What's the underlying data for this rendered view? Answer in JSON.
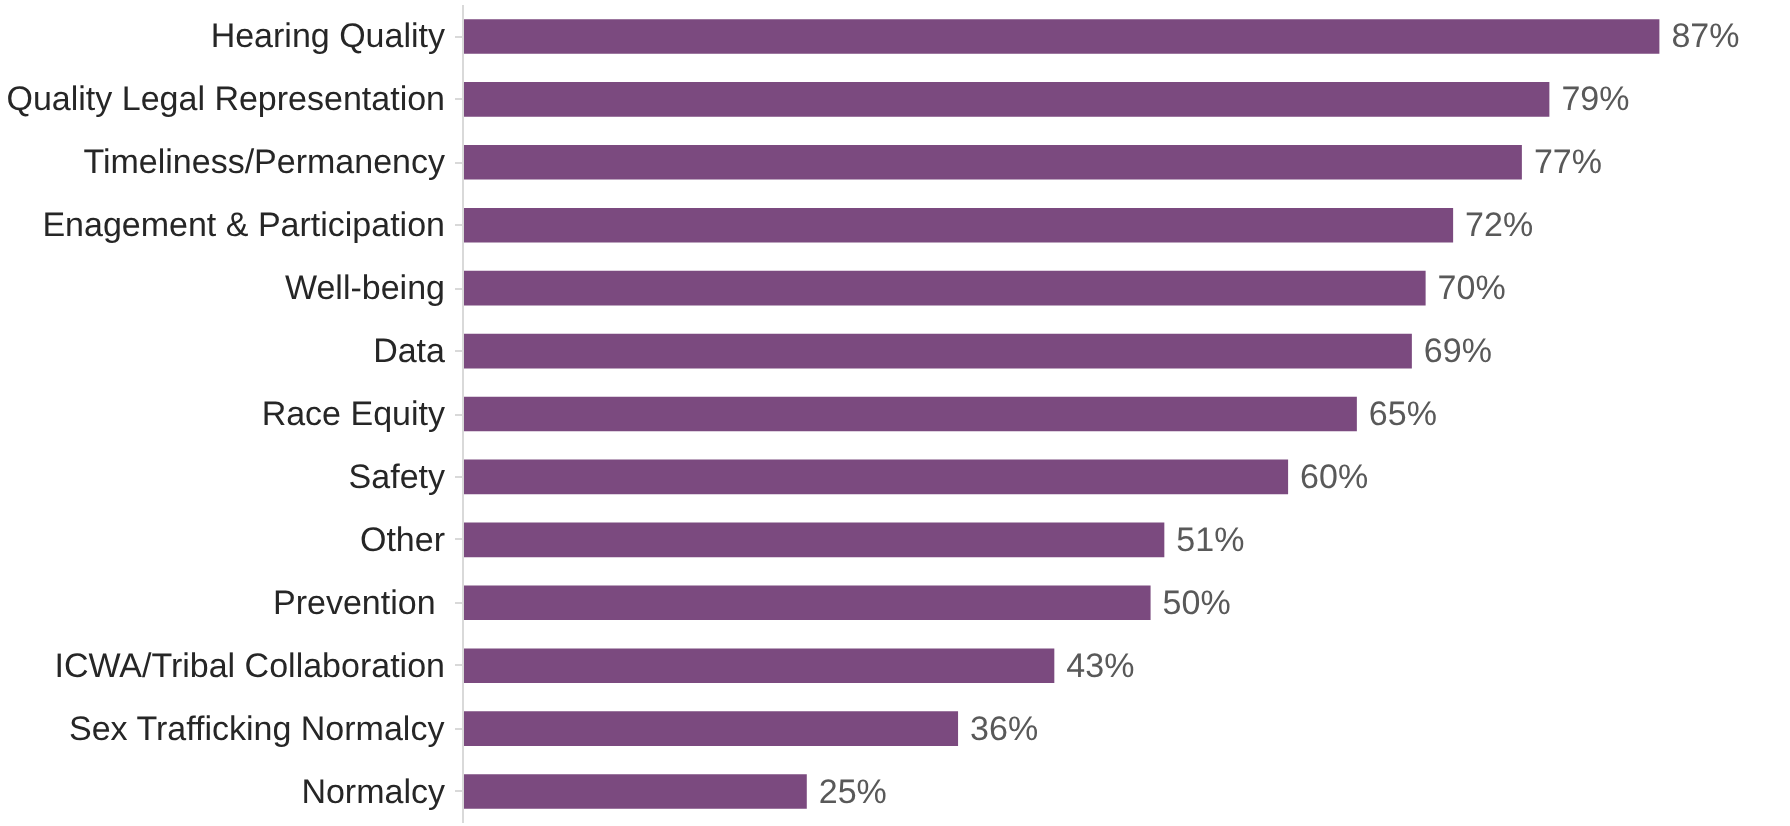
{
  "chart_data": {
    "type": "bar",
    "orientation": "horizontal",
    "categories": [
      "Hearing Quality",
      "Quality Legal Representation",
      "Timeliness/Permanency",
      "Enagement & Participation",
      "Well-being",
      "Data",
      "Race Equity",
      "Safety",
      "Other",
      "Prevention ",
      "ICWA/Tribal Collaboration",
      "Sex Trafficking Normalcy",
      "Normalcy"
    ],
    "values": [
      87,
      79,
      77,
      72,
      70,
      69,
      65,
      60,
      51,
      50,
      43,
      36,
      25
    ],
    "value_labels": [
      "87%",
      "79%",
      "77%",
      "72%",
      "70%",
      "69%",
      "65%",
      "60%",
      "51%",
      "50%",
      "43%",
      "36%",
      "25%"
    ],
    "color": "#7b4a7f",
    "grid": false
  }
}
